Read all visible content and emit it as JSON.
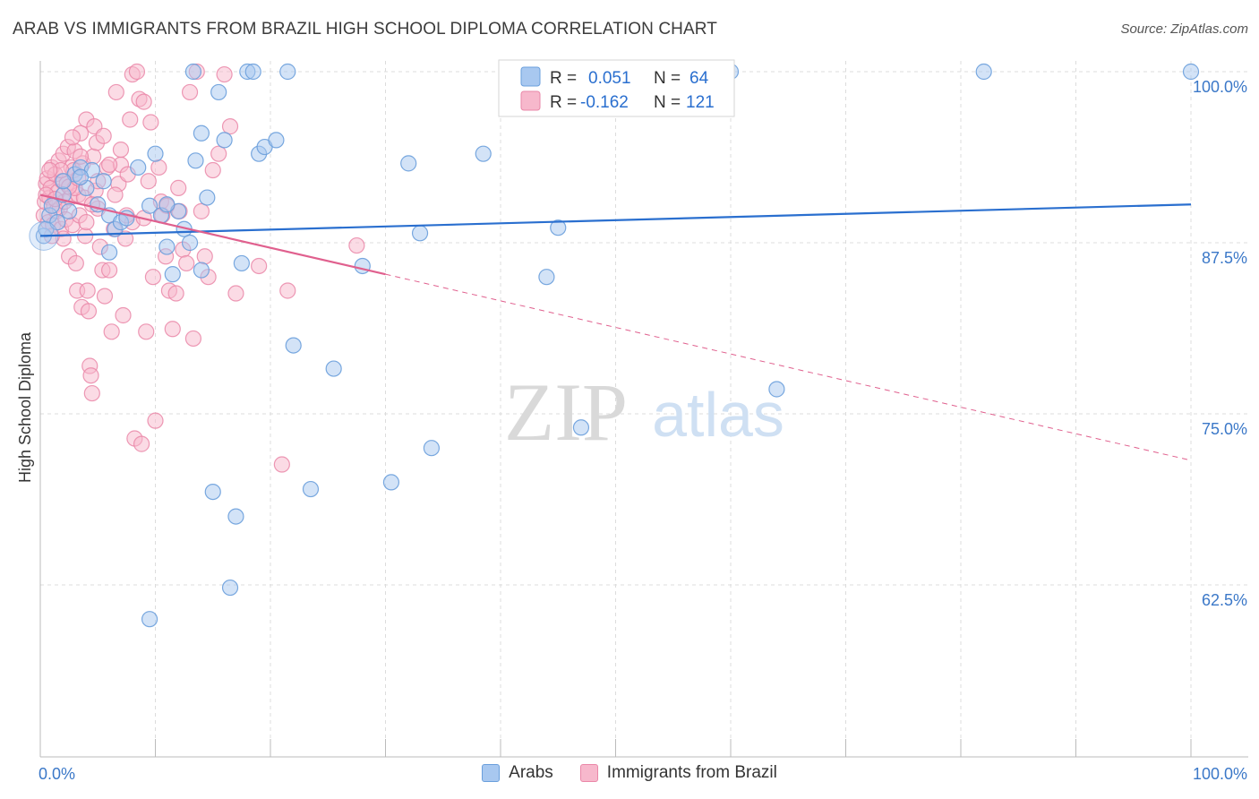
{
  "title": "ARAB VS IMMIGRANTS FROM BRAZIL HIGH SCHOOL DIPLOMA CORRELATION CHART",
  "source": "Source: ZipAtlas.com",
  "watermark": {
    "zip": "ZIP",
    "atlas": "atlas"
  },
  "colors": {
    "arabs_fill": "#a8c8f0",
    "arabs_stroke": "#6a9fdc",
    "arabs_line": "#2a6fcf",
    "brazil_fill": "#f7b8cc",
    "brazil_stroke": "#ea87a8",
    "brazil_line": "#e0608e",
    "axis_label": "#3b78c8",
    "grid": "#dcdcdc"
  },
  "legend_box": {
    "row1": {
      "r_label": "R =",
      "r_value": "0.051",
      "n_label": "N =",
      "n_value": "64"
    },
    "row2": {
      "r_label": "R =",
      "r_value": "-0.162",
      "n_label": "N =",
      "n_value": "121"
    }
  },
  "chart_data": {
    "type": "scatter",
    "title": "ARAB VS IMMIGRANTS FROM BRAZIL HIGH SCHOOL DIPLOMA CORRELATION CHART",
    "xlabel": "",
    "ylabel": "High School Diploma",
    "xlim": [
      0,
      100
    ],
    "ylim": [
      52,
      101.5
    ],
    "x_tick_labels": [
      "0.0%",
      "100.0%"
    ],
    "y_tick_values": [
      100,
      87.5,
      75,
      62.5
    ],
    "y_tick_labels": [
      "100.0%",
      "87.5%",
      "75.0%",
      "62.5%"
    ],
    "grid": true,
    "legend_position": "top-center",
    "series": [
      {
        "name": "Arabs",
        "R": 0.051,
        "N": 64,
        "trend": {
          "x": [
            0,
            100
          ],
          "y": [
            88.0,
            90.3
          ]
        },
        "points": [
          [
            0.3,
            88.0
          ],
          [
            0.5,
            88.5
          ],
          [
            0.8,
            89.5
          ],
          [
            1.0,
            90.2
          ],
          [
            1.5,
            89.0
          ],
          [
            2.0,
            91.0
          ],
          [
            2.5,
            89.8
          ],
          [
            3.0,
            92.5
          ],
          [
            3.5,
            93.0
          ],
          [
            4.0,
            91.5
          ],
          [
            4.5,
            92.8
          ],
          [
            5.0,
            90.3
          ],
          [
            5.5,
            92.0
          ],
          [
            6.0,
            89.5
          ],
          [
            6.5,
            88.5
          ],
          [
            7.0,
            89.0
          ],
          [
            8.5,
            93.0
          ],
          [
            9.5,
            90.2
          ],
          [
            10.0,
            94.0
          ],
          [
            10.5,
            89.5
          ],
          [
            11.0,
            87.2
          ],
          [
            11.5,
            85.2
          ],
          [
            12.0,
            89.8
          ],
          [
            12.5,
            88.5
          ],
          [
            13.0,
            87.5
          ],
          [
            13.3,
            100.0
          ],
          [
            13.5,
            93.5
          ],
          [
            14.0,
            85.5
          ],
          [
            14.5,
            90.8
          ],
          [
            15.0,
            69.3
          ],
          [
            15.5,
            98.5
          ],
          [
            16.0,
            95.0
          ],
          [
            16.5,
            62.3
          ],
          [
            17.0,
            67.5
          ],
          [
            17.5,
            86.0
          ],
          [
            18.0,
            100.0
          ],
          [
            18.5,
            100.0
          ],
          [
            19.0,
            94.0
          ],
          [
            19.5,
            94.5
          ],
          [
            20.5,
            95.0
          ],
          [
            21.5,
            100.0
          ],
          [
            22.0,
            80.0
          ],
          [
            23.5,
            69.5
          ],
          [
            25.5,
            78.3
          ],
          [
            28.0,
            85.8
          ],
          [
            30.5,
            70.0
          ],
          [
            32.0,
            93.3
          ],
          [
            33.0,
            88.2
          ],
          [
            34.0,
            72.5
          ],
          [
            38.5,
            94.0
          ],
          [
            44.0,
            85.0
          ],
          [
            45.0,
            88.6
          ],
          [
            47.0,
            74.0
          ],
          [
            60.0,
            100.0
          ],
          [
            64.0,
            76.8
          ],
          [
            82.0,
            100.0
          ],
          [
            100.0,
            100.0
          ],
          [
            9.5,
            60.0
          ],
          [
            6.0,
            86.8
          ],
          [
            3.5,
            92.3
          ],
          [
            11.0,
            90.3
          ],
          [
            7.5,
            89.3
          ],
          [
            2.0,
            92.0
          ],
          [
            14.0,
            95.5
          ]
        ]
      },
      {
        "name": "Immigrants from Brazil",
        "R": -0.162,
        "N": 121,
        "trend_solid": {
          "x": [
            0,
            30
          ],
          "y": [
            91.0,
            85.2
          ]
        },
        "trend_dashed": {
          "x": [
            30,
            100
          ],
          "y": [
            85.2,
            71.6
          ]
        },
        "points": [
          [
            0.3,
            89.5
          ],
          [
            0.4,
            90.5
          ],
          [
            0.5,
            91.8
          ],
          [
            0.6,
            92.2
          ],
          [
            0.7,
            89.0
          ],
          [
            0.8,
            90.8
          ],
          [
            0.9,
            91.5
          ],
          [
            1.0,
            93.0
          ],
          [
            1.1,
            88.8
          ],
          [
            1.2,
            90.2
          ],
          [
            1.3,
            92.5
          ],
          [
            1.4,
            89.8
          ],
          [
            1.5,
            91.2
          ],
          [
            1.6,
            93.5
          ],
          [
            1.7,
            90.0
          ],
          [
            1.8,
            88.5
          ],
          [
            1.9,
            92.0
          ],
          [
            2.0,
            94.0
          ],
          [
            2.1,
            90.5
          ],
          [
            2.2,
            89.2
          ],
          [
            2.3,
            91.8
          ],
          [
            2.4,
            94.5
          ],
          [
            2.5,
            86.5
          ],
          [
            2.6,
            90.8
          ],
          [
            2.7,
            93.0
          ],
          [
            2.8,
            88.8
          ],
          [
            2.9,
            92.8
          ],
          [
            3.0,
            94.2
          ],
          [
            3.1,
            86.0
          ],
          [
            3.2,
            84.0
          ],
          [
            3.3,
            91.0
          ],
          [
            3.4,
            89.5
          ],
          [
            3.5,
            95.5
          ],
          [
            3.6,
            82.8
          ],
          [
            3.7,
            93.3
          ],
          [
            3.8,
            90.8
          ],
          [
            3.9,
            88.0
          ],
          [
            4.0,
            96.5
          ],
          [
            4.1,
            84.0
          ],
          [
            4.2,
            82.5
          ],
          [
            4.3,
            78.5
          ],
          [
            4.4,
            77.8
          ],
          [
            4.5,
            76.5
          ],
          [
            4.6,
            93.8
          ],
          [
            4.7,
            96.0
          ],
          [
            4.8,
            91.3
          ],
          [
            4.9,
            94.8
          ],
          [
            5.0,
            90.0
          ],
          [
            5.2,
            87.2
          ],
          [
            5.4,
            85.5
          ],
          [
            5.6,
            83.6
          ],
          [
            5.8,
            93.0
          ],
          [
            6.0,
            85.5
          ],
          [
            6.2,
            81.0
          ],
          [
            6.4,
            88.5
          ],
          [
            6.6,
            98.5
          ],
          [
            6.8,
            91.8
          ],
          [
            7.0,
            93.2
          ],
          [
            7.2,
            82.2
          ],
          [
            7.4,
            87.8
          ],
          [
            7.6,
            92.5
          ],
          [
            7.8,
            96.5
          ],
          [
            8.0,
            99.8
          ],
          [
            8.2,
            73.2
          ],
          [
            8.4,
            100.0
          ],
          [
            8.6,
            98.0
          ],
          [
            8.8,
            72.8
          ],
          [
            9.0,
            97.8
          ],
          [
            9.2,
            81.0
          ],
          [
            9.4,
            92.0
          ],
          [
            9.6,
            96.3
          ],
          [
            9.8,
            85.0
          ],
          [
            10.0,
            74.5
          ],
          [
            10.3,
            93.0
          ],
          [
            10.6,
            89.5
          ],
          [
            10.9,
            86.5
          ],
          [
            11.2,
            84.0
          ],
          [
            11.5,
            81.2
          ],
          [
            11.8,
            83.8
          ],
          [
            12.1,
            89.8
          ],
          [
            12.4,
            87.0
          ],
          [
            12.7,
            86.0
          ],
          [
            13.0,
            98.5
          ],
          [
            13.3,
            80.5
          ],
          [
            13.6,
            100.0
          ],
          [
            14.0,
            89.8
          ],
          [
            14.3,
            86.5
          ],
          [
            14.6,
            85.0
          ],
          [
            15.0,
            92.8
          ],
          [
            15.5,
            94.0
          ],
          [
            16.0,
            99.8
          ],
          [
            16.5,
            96.0
          ],
          [
            17.0,
            83.8
          ],
          [
            19.0,
            85.8
          ],
          [
            21.0,
            71.3
          ],
          [
            21.5,
            84.0
          ],
          [
            27.5,
            87.3
          ],
          [
            3.0,
            91.5
          ],
          [
            2.0,
            87.8
          ],
          [
            1.0,
            88.0
          ],
          [
            0.5,
            91.0
          ],
          [
            5.0,
            92.0
          ],
          [
            6.5,
            91.0
          ],
          [
            7.0,
            94.3
          ],
          [
            8.0,
            89.0
          ],
          [
            4.5,
            90.3
          ],
          [
            3.5,
            93.8
          ],
          [
            2.8,
            95.2
          ],
          [
            1.8,
            92.8
          ],
          [
            9.0,
            89.3
          ],
          [
            10.5,
            90.5
          ],
          [
            12.0,
            91.5
          ],
          [
            6.0,
            93.2
          ],
          [
            7.5,
            89.5
          ],
          [
            2.5,
            91.6
          ],
          [
            1.3,
            90.7
          ],
          [
            0.8,
            92.8
          ],
          [
            4.0,
            89.0
          ],
          [
            5.5,
            95.3
          ],
          [
            3.3,
            92.2
          ],
          [
            11.0,
            90.2
          ]
        ]
      }
    ]
  },
  "bottom_legend": [
    {
      "label": "Arabs"
    },
    {
      "label": "Immigrants from Brazil"
    }
  ]
}
